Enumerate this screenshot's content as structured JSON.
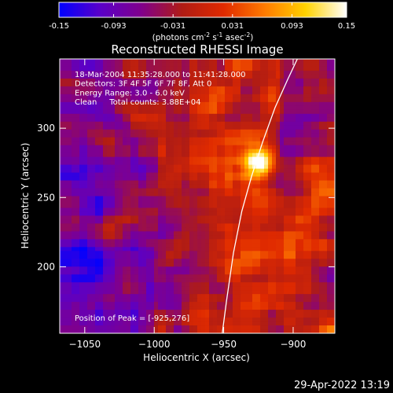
{
  "chart_data": {
    "type": "heatmap",
    "title": "Reconstructed RHESSI Image",
    "colorbar": {
      "ticks": [
        "-0.15",
        "-0.093",
        "-0.031",
        "0.031",
        "0.093",
        "0.15"
      ],
      "tick_values": [
        -0.15,
        -0.093,
        -0.031,
        0.031,
        0.093,
        0.15
      ],
      "range": [
        -0.15,
        0.15
      ],
      "unit_label_parts": [
        "(photons cm",
        "-2",
        " s",
        "-1",
        " asec",
        "-2",
        ")"
      ],
      "colormap": [
        "#0000ff",
        "#5a00c8",
        "#80008c",
        "#b01c14",
        "#e02a00",
        "#ff7a00",
        "#ffd200",
        "#ffffff"
      ]
    },
    "xlabel": "Heliocentric X (arcsec)",
    "ylabel": "Heliocentric Y (arcsec)",
    "xlim": [
      -1068,
      -870
    ],
    "ylim": [
      152,
      350
    ],
    "xticks": [
      -1050,
      -1000,
      -950,
      -900
    ],
    "xtick_labels": [
      "−1050",
      "−1000",
      "−950",
      "−900"
    ],
    "yticks": [
      200,
      250,
      300
    ],
    "ytick_labels": [
      "200",
      "250",
      "300"
    ],
    "info_lines": [
      "18-Mar-2004 11:35:28.000 to 11:41:28.000",
      "Detectors: 3F 4F 5F 6F 7F 8F, Att 0",
      "Energy Range: 3.0 - 6.0 keV",
      "Clean     Total counts: 3.88E+04"
    ],
    "peak_text": "Position of Peak = [-925,276]",
    "peak": {
      "x": -925,
      "y": 276,
      "value": 0.15
    },
    "limb_curve": [
      {
        "x": -951,
        "y": 152
      },
      {
        "x": -948,
        "y": 175
      },
      {
        "x": -943,
        "y": 210
      },
      {
        "x": -937,
        "y": 240
      },
      {
        "x": -930,
        "y": 265
      },
      {
        "x": -922,
        "y": 290
      },
      {
        "x": -913,
        "y": 315
      },
      {
        "x": -904,
        "y": 335
      },
      {
        "x": -897,
        "y": 350
      }
    ],
    "grid": false
  },
  "footer": {
    "timestamp": "29-Apr-2022 13:19"
  }
}
